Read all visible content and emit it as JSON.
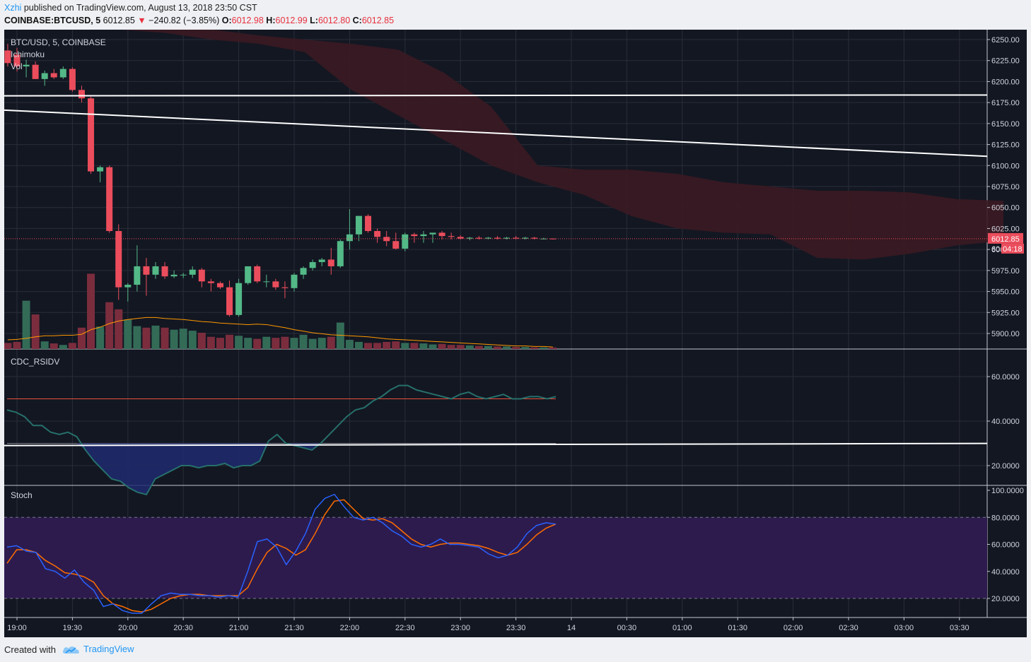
{
  "header": {
    "author": "Xzhi",
    "published": "published on TradingView.com, August 13, 2018 23:50 CST",
    "symbol": "COINBASE:BTCUSD",
    "interval": "5",
    "last": "6012.85",
    "change": "−240.82 (−3.85%)",
    "o_label": "O:",
    "o": "6012.98",
    "h_label": "H:",
    "h": "6012.99",
    "l_label": "L:",
    "l": "6012.80",
    "c_label": "C:",
    "c": "6012.85"
  },
  "legend": {
    "title": "BTC/USD, 5, COINBASE",
    "ichimoku": "Ichimoku",
    "vol": "Vol",
    "rsi": "CDC_RSIDV",
    "stoch": "Stoch"
  },
  "price_tags": {
    "last_price": "6012.85",
    "countdown": "04:18",
    "partial": "60"
  },
  "footer": {
    "created_with": "Created with",
    "brand": "TradingView"
  },
  "colors": {
    "background": "#131722",
    "grid": "#2a2e39",
    "bull": "#53b987",
    "bear": "#eb4d5c",
    "vol_bull": "#336b57",
    "vol_bear": "#7b2d3d",
    "cloud": "#3b1a22",
    "rsi_line": "#26706b",
    "stoch_k": "#2962ff",
    "stoch_d": "#ff6d00",
    "stoch_band": "#2d1b4e",
    "accent": "#2196f3"
  },
  "chart_data": [
    {
      "type": "candlestick",
      "title": "BTC/USD, 5, COINBASE",
      "time_ticks": [
        "19:00",
        "19:30",
        "20:00",
        "20:30",
        "21:00",
        "21:30",
        "22:00",
        "22:30",
        "23:00",
        "23:30",
        "14",
        "00:30",
        "01:00",
        "01:30",
        "02:00",
        "02:30",
        "03:00",
        "03:30"
      ],
      "y_ticks": [
        "6250.00",
        "6225.00",
        "6200.00",
        "6175.00",
        "6150.00",
        "6125.00",
        "6100.00",
        "6075.00",
        "6050.00",
        "6025.00",
        "6000.00",
        "5975.00",
        "5950.00",
        "5925.00",
        "5900.00"
      ],
      "ylim": [
        5880,
        6260
      ],
      "start_time": "18:55",
      "interval_minutes": 5,
      "ohlc": [
        [
          6237,
          6245,
          6218,
          6222
        ],
        [
          6232,
          6240,
          6212,
          6218
        ],
        [
          6218,
          6226,
          6205,
          6220
        ],
        [
          6220,
          6224,
          6203,
          6203
        ],
        [
          6203,
          6213,
          6195,
          6210
        ],
        [
          6210,
          6215,
          6203,
          6205
        ],
        [
          6205,
          6218,
          6203,
          6215
        ],
        [
          6215,
          6217,
          6188,
          6190
        ],
        [
          6190,
          6195,
          6175,
          6180
        ],
        [
          6180,
          6182,
          6090,
          6093
        ],
        [
          6093,
          6100,
          6080,
          6098
        ],
        [
          6098,
          6100,
          6020,
          6022
        ],
        [
          6022,
          6030,
          5940,
          5955
        ],
        [
          5955,
          5960,
          5938,
          5958
        ],
        [
          5958,
          6005,
          5950,
          5980
        ],
        [
          5980,
          5990,
          5945,
          5970
        ],
        [
          5970,
          5985,
          5965,
          5980
        ],
        [
          5980,
          5985,
          5965,
          5968
        ],
        [
          5968,
          5975,
          5966,
          5970
        ],
        [
          5970,
          5972,
          5966,
          5970
        ],
        [
          5970,
          5980,
          5966,
          5976
        ],
        [
          5976,
          5978,
          5955,
          5962
        ],
        [
          5962,
          5965,
          5950,
          5960
        ],
        [
          5960,
          5962,
          5953,
          5955
        ],
        [
          5955,
          5963,
          5920,
          5922
        ],
        [
          5922,
          5965,
          5920,
          5960
        ],
        [
          5960,
          5980,
          5958,
          5980
        ],
        [
          5980,
          5982,
          5960,
          5962
        ],
        [
          5962,
          5970,
          5955,
          5962
        ],
        [
          5962,
          5965,
          5952,
          5955
        ],
        [
          5955,
          5962,
          5942,
          5954
        ],
        [
          5954,
          5972,
          5950,
          5970
        ],
        [
          5970,
          5980,
          5965,
          5978
        ],
        [
          5978,
          5988,
          5975,
          5985
        ],
        [
          5985,
          5990,
          5980,
          5988
        ],
        [
          5988,
          6002,
          5970,
          5980
        ],
        [
          5980,
          6012,
          5978,
          6010
        ],
        [
          6010,
          6048,
          6000,
          6018
        ],
        [
          6018,
          6040,
          6010,
          6040
        ],
        [
          6040,
          6042,
          6020,
          6022
        ],
        [
          6022,
          6025,
          6008,
          6015
        ],
        [
          6015,
          6022,
          6004,
          6010
        ],
        [
          6010,
          6020,
          6000,
          6001
        ],
        [
          6001,
          6020,
          5998,
          6018
        ],
        [
          6018,
          6020,
          6008,
          6016
        ],
        [
          6016,
          6022,
          6008,
          6018
        ],
        [
          6018,
          6019,
          6008,
          6020
        ],
        [
          6020,
          6022,
          6012,
          6016
        ],
        [
          6016,
          6020,
          6012,
          6015
        ],
        [
          6015,
          6017,
          6012,
          6013
        ],
        [
          6013,
          6015,
          6011,
          6014
        ],
        [
          6014,
          6016,
          6012,
          6013
        ],
        [
          6013,
          6015,
          6012,
          6014
        ],
        [
          6014,
          6016,
          6012,
          6013
        ],
        [
          6013,
          6015,
          6012,
          6014
        ],
        [
          6014,
          6016,
          6012,
          6013
        ],
        [
          6013,
          6015,
          6012,
          6014
        ],
        [
          6014,
          6015,
          6012,
          6013
        ],
        [
          6013,
          6014,
          6012,
          6013
        ],
        [
          6013,
          6013,
          6012,
          6012.85
        ]
      ],
      "volume": [
        12,
        14,
        95,
        68,
        15,
        11,
        8,
        12,
        42,
        148,
        44,
        92,
        78,
        58,
        45,
        42,
        46,
        42,
        38,
        40,
        36,
        32,
        24,
        22,
        28,
        26,
        22,
        20,
        24,
        22,
        24,
        22,
        28,
        20,
        22,
        24,
        52,
        18,
        14,
        12,
        12,
        14,
        15,
        12,
        12,
        11,
        9,
        10,
        8,
        8,
        7,
        6,
        6,
        5,
        5,
        4,
        4,
        3,
        3,
        3
      ],
      "volume_ma": [
        18,
        19,
        21,
        24,
        26,
        26,
        27,
        27,
        29,
        38,
        43,
        50,
        55,
        58,
        60,
        62,
        62,
        60,
        59,
        58,
        56,
        54,
        53,
        51,
        50,
        49,
        48,
        49,
        48,
        45,
        42,
        38,
        35,
        32,
        30,
        28,
        27,
        26,
        25,
        24,
        22,
        20,
        19,
        18,
        17,
        16,
        15,
        14,
        13,
        12,
        11,
        10,
        9,
        8,
        7,
        6,
        6,
        5,
        5,
        4
      ],
      "cloud_top": [
        6290,
        6270,
        6262,
        6255,
        6250,
        6245,
        6238,
        6210,
        6170,
        6100,
        6095,
        6095,
        6090,
        6080,
        6075,
        6070,
        6070,
        6068,
        6060,
        6058
      ],
      "cloud_bottom": [
        6262,
        6258,
        6250,
        6245,
        6235,
        6190,
        6160,
        6130,
        6100,
        6080,
        6065,
        6040,
        6025,
        6020,
        6018,
        5990,
        5988,
        5995,
        6005,
        6010
      ],
      "trendlines": [
        {
          "from": [
            "18:55",
            6183
          ],
          "to": [
            "03:50",
            6184
          ]
        },
        {
          "from": [
            "18:55",
            6166
          ],
          "to": [
            "03:50",
            6111
          ]
        }
      ]
    },
    {
      "type": "line",
      "title": "CDC_RSIDV",
      "y_ticks": [
        "60.0000",
        "40.0000",
        "20.0000"
      ],
      "ylim": [
        5,
        70
      ],
      "levels": [
        50,
        30
      ],
      "trendline": 29,
      "series": [
        {
          "name": "",
          "values": [
            45,
            44,
            42,
            38,
            38,
            35,
            34,
            35,
            33,
            27,
            22,
            18,
            14,
            13,
            10,
            8,
            7,
            14,
            16,
            18,
            20,
            20,
            19,
            20,
            20,
            21,
            19,
            20,
            20,
            22,
            31,
            34,
            30,
            29,
            28,
            27,
            30,
            34,
            38,
            42,
            45,
            46,
            49,
            51,
            54,
            56,
            56,
            54,
            53,
            52,
            51,
            50,
            52,
            53,
            51,
            50,
            51,
            52,
            50,
            50,
            51,
            51,
            50,
            51
          ]
        }
      ]
    },
    {
      "type": "line",
      "title": "Stoch",
      "y_ticks": [
        "100.0000",
        "80.0000",
        "60.0000",
        "40.0000",
        "20.0000"
      ],
      "ylim": [
        5,
        102
      ],
      "band": [
        20,
        80
      ],
      "series": [
        {
          "name": "",
          "values": [
            58,
            59,
            55,
            54,
            42,
            40,
            35,
            41,
            32,
            26,
            14,
            16,
            11,
            9,
            9,
            16,
            22,
            24,
            23,
            23,
            22,
            22,
            21,
            22,
            21,
            40,
            62,
            64,
            58,
            45,
            55,
            68,
            86,
            94,
            97,
            88,
            80,
            78,
            80,
            76,
            70,
            66,
            60,
            58,
            60,
            64,
            60,
            60,
            59,
            58,
            53,
            50,
            52,
            58,
            68,
            74,
            76,
            75
          ]
        },
        {
          "name": "",
          "values": [
            46,
            56,
            56,
            54,
            48,
            44,
            39,
            38,
            36,
            32,
            22,
            16,
            14,
            11,
            10,
            12,
            16,
            20,
            22,
            23,
            23,
            22,
            22,
            22,
            22,
            28,
            42,
            54,
            60,
            57,
            52,
            56,
            68,
            82,
            92,
            93,
            86,
            79,
            78,
            79,
            76,
            70,
            64,
            60,
            58,
            60,
            61,
            61,
            60,
            59,
            57,
            54,
            52,
            54,
            60,
            67,
            72,
            75
          ]
        }
      ]
    }
  ]
}
